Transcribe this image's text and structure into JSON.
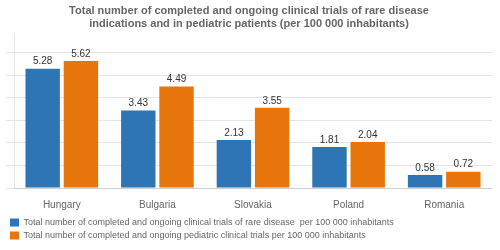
{
  "chart_data": {
    "type": "bar",
    "title": "Total number of completed and ongoing clinical trials of rare disease\nindications and in pediatric patients (per 100 000 inhabitants)",
    "categories": [
      "Hungary",
      "Bulgaria",
      "Slovakia",
      "Poland",
      "Romania"
    ],
    "series": [
      {
        "name": "Total number of completed and ongoing clinical trials of rare disease  per 100 000 inhabitants",
        "color": "#2E75B6",
        "values": [
          5.28,
          3.43,
          2.13,
          1.81,
          0.58
        ]
      },
      {
        "name": "Total number of completed and ongoing pediatric clinical trials per 100 000 inhabitants",
        "color": "#E8740C",
        "values": [
          5.62,
          4.49,
          3.55,
          2.04,
          0.72
        ]
      }
    ],
    "ylim": [
      0,
      6.8
    ],
    "yticks": [
      0,
      1,
      2,
      3,
      4,
      5,
      6
    ],
    "grid": true,
    "data_labels": true,
    "tick_labels": "x",
    "legend": "lower left"
  }
}
